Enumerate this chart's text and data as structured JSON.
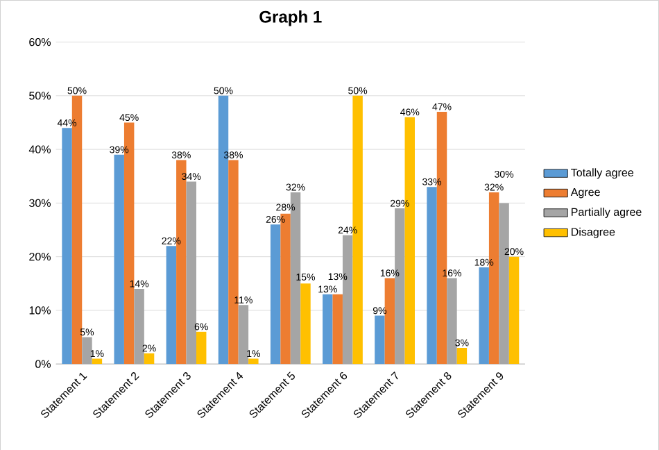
{
  "chart_data": {
    "type": "bar",
    "title": "Graph 1",
    "categories": [
      "Statement 1",
      "Statement 2",
      "Statement 3",
      "Statement 4",
      "Statement 5",
      "Statement 6",
      "Statement 7",
      "Statement 8",
      "Statement 9"
    ],
    "series": [
      {
        "name": "Totally agree",
        "color": "#5b9bd5",
        "values": [
          44,
          39,
          22,
          50,
          26,
          13,
          9,
          33,
          18
        ],
        "value_labels": [
          "44%",
          "39%",
          "22%",
          "50%",
          "26%",
          "13%",
          "9%",
          "33%",
          "18%"
        ]
      },
      {
        "name": "Agree",
        "color": "#ed7d31",
        "values": [
          50,
          45,
          38,
          38,
          28,
          13,
          16,
          47,
          32
        ],
        "value_labels": [
          "50%",
          "45%",
          "38%",
          "38%",
          "28%",
          "13%",
          "16%",
          "47%",
          "32%"
        ]
      },
      {
        "name": "Partially agree",
        "color": "#a5a5a5",
        "values": [
          5,
          14,
          34,
          11,
          32,
          24,
          29,
          16,
          30
        ],
        "value_labels": [
          "5%",
          "14%",
          "34%",
          "11%",
          "32%",
          "24%",
          "29%",
          "16%",
          "30%"
        ]
      },
      {
        "name": "Disagree",
        "color": "#ffc000",
        "values": [
          1,
          2,
          6,
          1,
          15,
          50,
          46,
          3,
          20
        ],
        "value_labels": [
          "1%",
          "2%",
          "6%",
          "1%",
          "15%",
          "50%",
          "46%",
          "3%",
          "20%"
        ]
      }
    ],
    "ylim": [
      0,
      60
    ],
    "yticks": [
      {
        "value": 0,
        "label": "0%"
      },
      {
        "value": 10,
        "label": "10%"
      },
      {
        "value": 20,
        "label": "20%"
      },
      {
        "value": 30,
        "label": "30%"
      },
      {
        "value": 40,
        "label": "40%"
      },
      {
        "value": 50,
        "label": "50%"
      },
      {
        "value": 60,
        "label": "60%"
      }
    ],
    "grid": "y",
    "legend": "right"
  }
}
